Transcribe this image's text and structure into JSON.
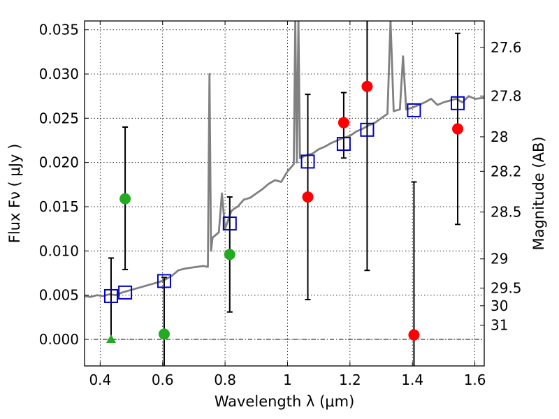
{
  "chart_data": {
    "type": "scatter",
    "xlabel": "Wavelength  λ (μm)",
    "ylabel": "Flux  Fν  ( μJy )",
    "y2label": "Magnitude (AB)",
    "xlim": [
      0.35,
      1.63
    ],
    "ylim": [
      -0.003,
      0.036
    ],
    "xticks": [
      0.4,
      0.6,
      0.8,
      1.0,
      1.2,
      1.4,
      1.6
    ],
    "xtick_labels": [
      "0.4",
      "0.6",
      "0.8",
      "1",
      "1.2",
      "1.4",
      "1.6"
    ],
    "yticks": [
      0.0,
      0.005,
      0.01,
      0.015,
      0.02,
      0.025,
      0.03,
      0.035
    ],
    "ytick_labels": [
      "0.000",
      "0.005",
      "0.010",
      "0.015",
      "0.020",
      "0.025",
      "0.030",
      "0.035"
    ],
    "mag_ticks": [
      {
        "label": "27.6",
        "flux": 0.033
      },
      {
        "label": "27.8",
        "flux": 0.0275
      },
      {
        "label": "28",
        "flux": 0.0229
      },
      {
        "label": "28.2",
        "flux": 0.019
      },
      {
        "label": "28.5",
        "flux": 0.0144
      },
      {
        "label": "29",
        "flux": 0.0091
      },
      {
        "label": "29.5",
        "flux": 0.0058
      },
      {
        "label": "30",
        "flux": 0.0038
      },
      {
        "label": "31",
        "flux": 0.0016
      }
    ],
    "grid": true,
    "colors": {
      "model": "#808080",
      "model_points": "#0000cc",
      "detections_red": "#ff0000",
      "detections_green": "#22aa22",
      "errorbars": "#000000",
      "zero_line": "#000000"
    },
    "series": [
      {
        "name": "SED model",
        "kind": "line",
        "x": [
          0.35,
          0.37,
          0.39,
          0.41,
          0.43,
          0.45,
          0.47,
          0.49,
          0.51,
          0.53,
          0.55,
          0.57,
          0.59,
          0.61,
          0.63,
          0.65,
          0.67,
          0.69,
          0.71,
          0.73,
          0.745,
          0.75,
          0.755,
          0.76,
          0.77,
          0.78,
          0.79,
          0.8,
          0.82,
          0.83,
          0.84,
          0.86,
          0.88,
          0.9,
          0.92,
          0.94,
          0.96,
          0.98,
          1.0,
          1.02,
          1.025,
          1.03,
          1.035,
          1.04,
          1.06,
          1.08,
          1.1,
          1.12,
          1.14,
          1.16,
          1.18,
          1.2,
          1.22,
          1.24,
          1.26,
          1.28,
          1.3,
          1.32,
          1.33,
          1.34,
          1.36,
          1.37,
          1.38,
          1.4,
          1.42,
          1.44,
          1.46,
          1.48,
          1.5,
          1.52,
          1.54,
          1.56,
          1.58,
          1.6,
          1.63
        ],
        "y": [
          0.0049,
          0.0048,
          0.005,
          0.0049,
          0.0051,
          0.005,
          0.0053,
          0.0055,
          0.0057,
          0.0059,
          0.0061,
          0.0063,
          0.0065,
          0.0068,
          0.0072,
          0.0078,
          0.008,
          0.0081,
          0.0082,
          0.0083,
          0.0082,
          0.03,
          0.01,
          0.0115,
          0.0118,
          0.0121,
          0.0165,
          0.0125,
          0.0145,
          0.0148,
          0.015,
          0.0158,
          0.016,
          0.0165,
          0.017,
          0.0176,
          0.018,
          0.0178,
          0.019,
          0.0198,
          0.036,
          0.02,
          0.036,
          0.0205,
          0.0208,
          0.021,
          0.0215,
          0.0218,
          0.0222,
          0.0225,
          0.0228,
          0.023,
          0.0235,
          0.0238,
          0.0242,
          0.0245,
          0.025,
          0.0255,
          0.036,
          0.0258,
          0.026,
          0.032,
          0.026,
          0.0262,
          0.0265,
          0.0268,
          0.0272,
          0.0265,
          0.0268,
          0.027,
          0.0272,
          0.0268,
          0.0275,
          0.0272,
          0.0273
        ]
      },
      {
        "name": "Model photometry",
        "kind": "square",
        "x": [
          0.435,
          0.48,
          0.605,
          0.815,
          1.065,
          1.18,
          1.255,
          1.405,
          1.545
        ],
        "y": [
          0.0049,
          0.0053,
          0.0066,
          0.0131,
          0.0201,
          0.0221,
          0.0237,
          0.0259,
          0.0267
        ]
      },
      {
        "name": "Observed (red)",
        "kind": "circle",
        "color": "red",
        "x": [
          1.065,
          1.18,
          1.255,
          1.405,
          1.545
        ],
        "y": [
          0.0161,
          0.0245,
          0.0286,
          0.0005,
          0.0238
        ],
        "err_low": [
          0.0045,
          0.0205,
          0.0078,
          -0.003,
          0.013
        ],
        "err_high": [
          0.0277,
          0.0279,
          0.036,
          0.0178,
          0.0346
        ]
      },
      {
        "name": "Observed (green)",
        "kind": "circle",
        "color": "green",
        "x": [
          0.48,
          0.605,
          0.815
        ],
        "y": [
          0.0159,
          0.0006,
          0.0096
        ],
        "err_low": [
          0.0079,
          -0.003,
          0.0031
        ],
        "err_high": [
          0.024,
          0.007,
          0.0161
        ]
      },
      {
        "name": "Upper limit",
        "kind": "triangle",
        "color": "green",
        "x": [
          0.435
        ],
        "y": [
          0.0
        ],
        "err_low": [
          0.0
        ],
        "err_high": [
          0.0092
        ]
      }
    ]
  }
}
